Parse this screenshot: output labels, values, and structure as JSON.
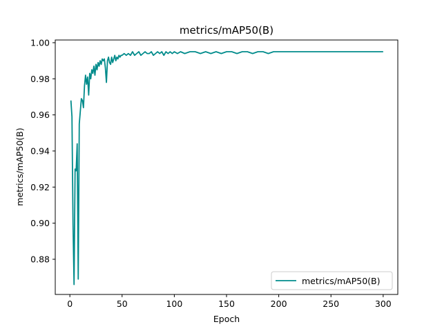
{
  "chart_data": {
    "type": "line",
    "title": "metrics/mAP50(B)",
    "xlabel": "Epoch",
    "ylabel": "metrics/mAP50(B)",
    "xlim": [
      -14,
      314
    ],
    "ylim": [
      0.8605,
      1.0015
    ],
    "xticks": [
      0,
      50,
      100,
      150,
      200,
      250,
      300
    ],
    "yticks": [
      0.88,
      0.9,
      0.92,
      0.94,
      0.96,
      0.98,
      1.0
    ],
    "xtick_labels": [
      "0",
      "50",
      "100",
      "150",
      "200",
      "250",
      "300"
    ],
    "ytick_labels": [
      "0.88",
      "0.90",
      "0.92",
      "0.94",
      "0.96",
      "0.98",
      "1.00"
    ],
    "legend": {
      "position": "lower right",
      "entries": [
        "metrics/mAP50(B)"
      ]
    },
    "grid": false,
    "colors": {
      "series": "#008b8b"
    },
    "series": [
      {
        "name": "metrics/mAP50(B)",
        "x": [
          1,
          2,
          3,
          4,
          5,
          6,
          7,
          8,
          9,
          10,
          11,
          12,
          13,
          14,
          15,
          16,
          17,
          18,
          19,
          20,
          21,
          22,
          23,
          24,
          25,
          26,
          27,
          28,
          29,
          30,
          31,
          32,
          33,
          34,
          35,
          36,
          37,
          38,
          39,
          40,
          41,
          42,
          43,
          44,
          45,
          46,
          47,
          48,
          49,
          50,
          52,
          54,
          56,
          58,
          60,
          62,
          64,
          66,
          68,
          70,
          72,
          74,
          76,
          78,
          80,
          82,
          84,
          86,
          88,
          90,
          92,
          94,
          96,
          98,
          100,
          103,
          106,
          110,
          115,
          120,
          125,
          130,
          135,
          140,
          145,
          150,
          155,
          160,
          165,
          170,
          175,
          180,
          185,
          190,
          195,
          200,
          210,
          220,
          230,
          240,
          250,
          260,
          270,
          280,
          290,
          300
        ],
        "y": [
          0.968,
          0.959,
          0.9,
          0.866,
          0.93,
          0.929,
          0.944,
          0.869,
          0.955,
          0.962,
          0.969,
          0.968,
          0.964,
          0.976,
          0.982,
          0.977,
          0.981,
          0.971,
          0.983,
          0.98,
          0.985,
          0.983,
          0.987,
          0.982,
          0.988,
          0.985,
          0.989,
          0.987,
          0.99,
          0.988,
          0.991,
          0.99,
          0.991,
          0.986,
          0.978,
          0.99,
          0.992,
          0.989,
          0.988,
          0.992,
          0.989,
          0.991,
          0.993,
          0.99,
          0.992,
          0.991,
          0.993,
          0.992,
          0.993,
          0.993,
          0.994,
          0.993,
          0.994,
          0.993,
          0.995,
          0.993,
          0.994,
          0.995,
          0.993,
          0.994,
          0.995,
          0.994,
          0.994,
          0.995,
          0.993,
          0.994,
          0.995,
          0.994,
          0.995,
          0.993,
          0.995,
          0.994,
          0.995,
          0.994,
          0.995,
          0.994,
          0.995,
          0.994,
          0.995,
          0.995,
          0.994,
          0.995,
          0.994,
          0.995,
          0.994,
          0.995,
          0.995,
          0.994,
          0.995,
          0.995,
          0.994,
          0.995,
          0.995,
          0.994,
          0.995,
          0.995,
          0.995,
          0.995,
          0.995,
          0.995,
          0.995,
          0.995,
          0.995,
          0.995,
          0.995,
          0.995
        ]
      }
    ]
  }
}
